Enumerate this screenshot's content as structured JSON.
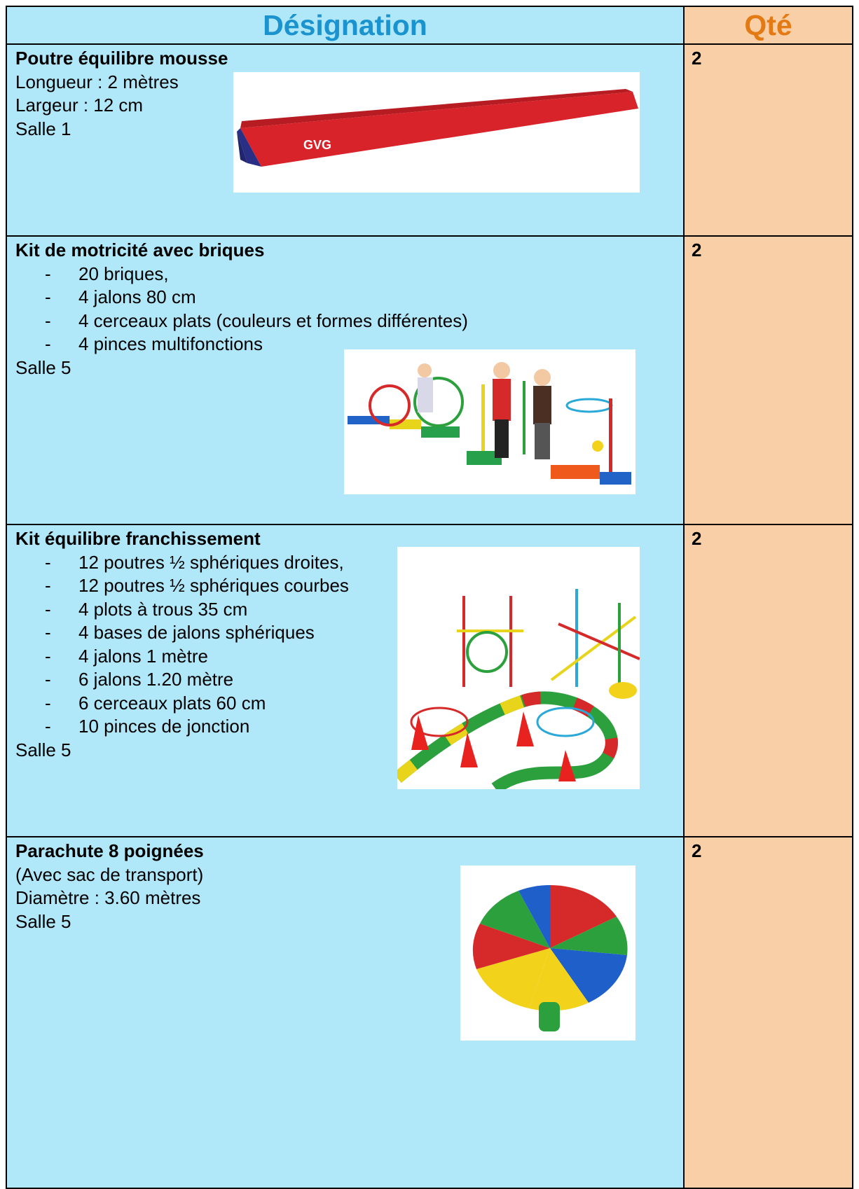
{
  "header": {
    "designation": "Désignation",
    "qty": "Qté"
  },
  "rows": [
    {
      "title": "Poutre équilibre mousse",
      "lines_before": [
        "Longueur : 2 mètres",
        "Largeur : 12 cm",
        "Salle 1"
      ],
      "qty": "2"
    },
    {
      "title": "Kit de motricité avec briques",
      "items": [
        "20 briques,",
        "4 jalons 80 cm",
        "4 cerceaux plats (couleurs et formes différentes)",
        "4 pinces multifonctions"
      ],
      "lines_after": [
        "Salle 5"
      ],
      "qty": "2"
    },
    {
      "title": "Kit équilibre franchissement",
      "items": [
        "12 poutres ½ sphériques droites,",
        "12 poutres ½ sphériques courbes",
        "4 plots à trous 35 cm",
        "4 bases de jalons sphériques",
        "4 jalons 1 mètre",
        "6 jalons 1.20 mètre",
        "6 cerceaux plats 60 cm",
        "10 pinces de jonction"
      ],
      "lines_after": [
        "Salle 5"
      ],
      "qty": "2"
    },
    {
      "title": "Parachute 8 poignées",
      "lines_before": [
        "(Avec sac de transport)",
        "Diamètre : 3.60 mètres",
        "Salle 5"
      ],
      "qty": "2"
    }
  ]
}
